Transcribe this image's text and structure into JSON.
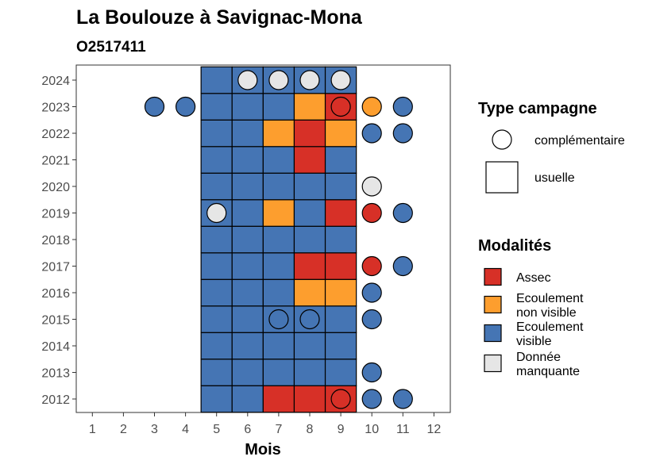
{
  "chart_data": {
    "type": "heatmap",
    "title": "La Boulouze à Savignac-Mona",
    "subtitle": "O2517411",
    "xlabel": "Mois",
    "ylabel": "",
    "x_ticks": [
      "1",
      "2",
      "3",
      "4",
      "5",
      "6",
      "7",
      "8",
      "9",
      "10",
      "11",
      "12"
    ],
    "years": [
      "2012",
      "2013",
      "2014",
      "2015",
      "2016",
      "2017",
      "2018",
      "2019",
      "2020",
      "2021",
      "2022",
      "2023",
      "2024"
    ],
    "grid": false,
    "colors": {
      "Assec": "#d73027",
      "Ecoulement non visible": "#fd9e2e",
      "Ecoulement visible": "#4575b4",
      "Donnée manquante": "#e6e6e6"
    },
    "usuelle": [
      {
        "year": "2012",
        "cells": [
          "Ecoulement visible",
          "Ecoulement visible",
          "Assec",
          "Assec",
          "Assec"
        ]
      },
      {
        "year": "2013",
        "cells": [
          "Ecoulement visible",
          "Ecoulement visible",
          "Ecoulement visible",
          "Ecoulement visible",
          "Ecoulement visible"
        ]
      },
      {
        "year": "2014",
        "cells": [
          "Ecoulement visible",
          "Ecoulement visible",
          "Ecoulement visible",
          "Ecoulement visible",
          "Ecoulement visible"
        ]
      },
      {
        "year": "2015",
        "cells": [
          "Ecoulement visible",
          "Ecoulement visible",
          "Ecoulement visible",
          "Ecoulement visible",
          "Ecoulement visible"
        ]
      },
      {
        "year": "2016",
        "cells": [
          "Ecoulement visible",
          "Ecoulement visible",
          "Ecoulement visible",
          "Ecoulement non visible",
          "Ecoulement non visible"
        ]
      },
      {
        "year": "2017",
        "cells": [
          "Ecoulement visible",
          "Ecoulement visible",
          "Ecoulement visible",
          "Assec",
          "Assec"
        ]
      },
      {
        "year": "2018",
        "cells": [
          "Ecoulement visible",
          "Ecoulement visible",
          "Ecoulement visible",
          "Ecoulement visible",
          "Ecoulement visible"
        ]
      },
      {
        "year": "2019",
        "cells": [
          "Ecoulement visible",
          "Ecoulement visible",
          "Ecoulement non visible",
          "Ecoulement visible",
          "Assec"
        ]
      },
      {
        "year": "2020",
        "cells": [
          "Ecoulement visible",
          "Ecoulement visible",
          "Ecoulement visible",
          "Ecoulement visible",
          "Ecoulement visible"
        ]
      },
      {
        "year": "2021",
        "cells": [
          "Ecoulement visible",
          "Ecoulement visible",
          "Ecoulement visible",
          "Assec",
          "Ecoulement visible"
        ]
      },
      {
        "year": "2022",
        "cells": [
          "Ecoulement visible",
          "Ecoulement visible",
          "Ecoulement non visible",
          "Assec",
          "Ecoulement non visible"
        ]
      },
      {
        "year": "2023",
        "cells": [
          "Ecoulement visible",
          "Ecoulement visible",
          "Ecoulement visible",
          "Ecoulement non visible",
          "Assec"
        ]
      },
      {
        "year": "2024",
        "cells": [
          "Ecoulement visible",
          "Ecoulement visible",
          "Ecoulement visible",
          "Ecoulement visible",
          "Ecoulement visible"
        ]
      }
    ],
    "usuelle_months": [
      5,
      6,
      7,
      8,
      9
    ],
    "complementaire": [
      {
        "year": "2012",
        "month": 9,
        "modalite": "Assec"
      },
      {
        "year": "2012",
        "month": 10,
        "modalite": "Ecoulement visible"
      },
      {
        "year": "2012",
        "month": 11,
        "modalite": "Ecoulement visible"
      },
      {
        "year": "2013",
        "month": 10,
        "modalite": "Ecoulement visible"
      },
      {
        "year": "2015",
        "month": 7,
        "modalite": "Ecoulement visible"
      },
      {
        "year": "2015",
        "month": 8,
        "modalite": "Ecoulement visible"
      },
      {
        "year": "2015",
        "month": 10,
        "modalite": "Ecoulement visible"
      },
      {
        "year": "2016",
        "month": 10,
        "modalite": "Ecoulement visible"
      },
      {
        "year": "2017",
        "month": 10,
        "modalite": "Assec"
      },
      {
        "year": "2017",
        "month": 11,
        "modalite": "Ecoulement visible"
      },
      {
        "year": "2019",
        "month": 5,
        "modalite": "Donnée manquante"
      },
      {
        "year": "2019",
        "month": 10,
        "modalite": "Assec"
      },
      {
        "year": "2019",
        "month": 11,
        "modalite": "Ecoulement visible"
      },
      {
        "year": "2020",
        "month": 10,
        "modalite": "Donnée manquante"
      },
      {
        "year": "2022",
        "month": 10,
        "modalite": "Ecoulement visible"
      },
      {
        "year": "2022",
        "month": 11,
        "modalite": "Ecoulement visible"
      },
      {
        "year": "2023",
        "month": 3,
        "modalite": "Ecoulement visible"
      },
      {
        "year": "2023",
        "month": 4,
        "modalite": "Ecoulement visible"
      },
      {
        "year": "2023",
        "month": 9,
        "modalite": "Assec"
      },
      {
        "year": "2023",
        "month": 10,
        "modalite": "Ecoulement non visible"
      },
      {
        "year": "2023",
        "month": 11,
        "modalite": "Ecoulement visible"
      },
      {
        "year": "2024",
        "month": 6,
        "modalite": "Donnée manquante"
      },
      {
        "year": "2024",
        "month": 7,
        "modalite": "Donnée manquante"
      },
      {
        "year": "2024",
        "month": 8,
        "modalite": "Donnée manquante"
      },
      {
        "year": "2024",
        "month": 9,
        "modalite": "Donnée manquante"
      }
    ],
    "legend_type": {
      "title": "Type campagne",
      "items": [
        {
          "label": "complémentaire",
          "shape": "circle"
        },
        {
          "label": "usuelle",
          "shape": "square"
        }
      ]
    },
    "legend_modalites": {
      "title": "Modalités",
      "items": [
        {
          "key": "Assec",
          "lines": [
            "Assec"
          ]
        },
        {
          "key": "Ecoulement non visible",
          "lines": [
            "Ecoulement",
            "non visible"
          ]
        },
        {
          "key": "Ecoulement visible",
          "lines": [
            "Ecoulement",
            "visible"
          ]
        },
        {
          "key": "Donnée manquante",
          "lines": [
            "Donnée",
            "manquante"
          ]
        }
      ]
    },
    "legend_placement": "right"
  }
}
